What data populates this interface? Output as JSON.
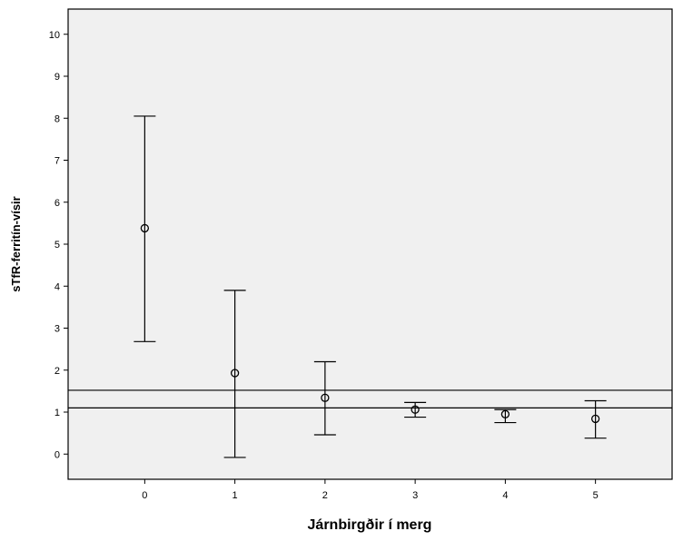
{
  "chart_data": {
    "type": "scatter",
    "subtype": "error-bar",
    "xlabel": "Járnbirgðir í merg",
    "ylabel": "sTfR-ferritín-vísir",
    "x_categories": [
      "0",
      "1",
      "2",
      "3",
      "4",
      "5"
    ],
    "xlim": [
      -0.85,
      5.85
    ],
    "ylim": [
      -0.6,
      10.6
    ],
    "y_ticks": [
      0,
      1,
      2,
      3,
      4,
      5,
      6,
      7,
      8,
      9,
      10
    ],
    "points": [
      {
        "x": 0,
        "mean": 5.38,
        "lower": 2.68,
        "upper": 8.05
      },
      {
        "x": 1,
        "mean": 1.93,
        "lower": -0.08,
        "upper": 3.9
      },
      {
        "x": 2,
        "mean": 1.34,
        "lower": 0.46,
        "upper": 2.2
      },
      {
        "x": 3,
        "mean": 1.06,
        "lower": 0.88,
        "upper": 1.23
      },
      {
        "x": 4,
        "mean": 0.95,
        "lower": 0.75,
        "upper": 1.06
      },
      {
        "x": 5,
        "mean": 0.84,
        "lower": 0.38,
        "upper": 1.27
      }
    ],
    "reference_lines": [
      1.1,
      1.52
    ],
    "background_color": "#f0f0f0",
    "grid": false
  }
}
